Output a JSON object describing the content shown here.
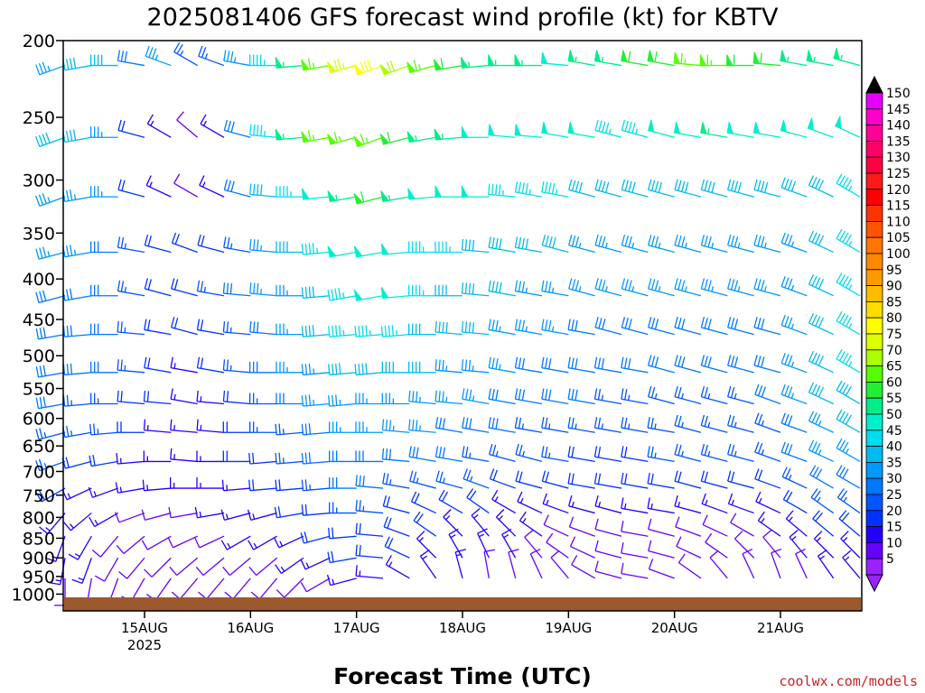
{
  "chart_data": {
    "type": "wind-barb-time-height",
    "title": "2025081406 GFS forecast wind profile (kt) for KBTV",
    "xlabel": "Forecast Time (UTC)",
    "ylabel": "",
    "y_axis": {
      "scale": "log-pressure",
      "range": [
        1050,
        200
      ],
      "ticks": [
        200,
        250,
        300,
        350,
        400,
        450,
        500,
        550,
        600,
        650,
        700,
        750,
        800,
        850,
        900,
        950,
        1000
      ]
    },
    "x_axis": {
      "range": [
        "2025-08-14 06Z",
        "2025-08-21 18Z"
      ],
      "ticks": [
        {
          "label": "15AUG",
          "sub": "2025",
          "time": "2025-08-15 00Z"
        },
        {
          "label": "16AUG",
          "sub": "",
          "time": "2025-08-16 00Z"
        },
        {
          "label": "17AUG",
          "sub": "",
          "time": "2025-08-17 00Z"
        },
        {
          "label": "18AUG",
          "sub": "",
          "time": "2025-08-18 00Z"
        },
        {
          "label": "19AUG",
          "sub": "",
          "time": "2025-08-19 00Z"
        },
        {
          "label": "20AUG",
          "sub": "",
          "time": "2025-08-20 00Z"
        },
        {
          "label": "21AUG",
          "sub": "",
          "time": "2025-08-21 00Z"
        }
      ]
    },
    "levels_hpa": [
      215,
      265,
      315,
      370,
      420,
      470,
      525,
      575,
      625,
      680,
      735,
      790,
      845,
      900,
      955
    ],
    "times_hours_from_start": [
      0,
      6,
      12,
      18,
      24,
      30,
      36,
      42,
      48,
      54,
      60,
      66,
      72,
      78,
      84,
      90,
      96,
      102,
      108,
      114,
      120,
      126,
      132,
      138,
      144,
      150,
      156,
      162,
      168,
      174,
      180
    ],
    "wind_speed_kt": [
      [
        35,
        40,
        40,
        30,
        35,
        25,
        25,
        35,
        45,
        55,
        65,
        75,
        80,
        70,
        65,
        60,
        55,
        55,
        55,
        50,
        55,
        55,
        60,
        60,
        65,
        65,
        60,
        60,
        55,
        55,
        55
      ],
      [
        40,
        40,
        35,
        20,
        15,
        10,
        15,
        30,
        45,
        55,
        65,
        65,
        65,
        60,
        55,
        55,
        50,
        50,
        50,
        50,
        50,
        45,
        45,
        50,
        50,
        55,
        50,
        50,
        50,
        50,
        50
      ],
      [
        35,
        35,
        35,
        20,
        15,
        10,
        15,
        30,
        40,
        45,
        50,
        55,
        60,
        55,
        50,
        50,
        50,
        45,
        45,
        45,
        40,
        40,
        40,
        40,
        40,
        40,
        40,
        40,
        40,
        40,
        45
      ],
      [
        35,
        35,
        30,
        25,
        20,
        20,
        20,
        25,
        35,
        40,
        45,
        50,
        50,
        50,
        45,
        45,
        40,
        40,
        40,
        40,
        35,
        35,
        35,
        35,
        35,
        35,
        35,
        35,
        35,
        40,
        45
      ],
      [
        30,
        30,
        30,
        25,
        20,
        20,
        25,
        30,
        35,
        35,
        40,
        45,
        50,
        50,
        45,
        40,
        40,
        40,
        35,
        35,
        35,
        35,
        35,
        35,
        35,
        35,
        35,
        35,
        35,
        40,
        45
      ],
      [
        30,
        30,
        30,
        25,
        20,
        20,
        20,
        25,
        30,
        35,
        40,
        45,
        45,
        45,
        40,
        40,
        40,
        35,
        35,
        35,
        30,
        30,
        30,
        30,
        30,
        30,
        30,
        30,
        35,
        40,
        45
      ],
      [
        30,
        30,
        30,
        25,
        20,
        15,
        20,
        25,
        30,
        35,
        35,
        40,
        40,
        40,
        40,
        35,
        35,
        35,
        30,
        30,
        30,
        30,
        30,
        30,
        30,
        30,
        30,
        30,
        35,
        40,
        45
      ],
      [
        30,
        25,
        25,
        20,
        20,
        15,
        15,
        20,
        25,
        30,
        35,
        35,
        35,
        35,
        35,
        35,
        35,
        30,
        30,
        30,
        30,
        25,
        25,
        25,
        25,
        25,
        25,
        30,
        35,
        40,
        40
      ],
      [
        25,
        25,
        25,
        20,
        15,
        15,
        15,
        20,
        25,
        25,
        30,
        35,
        35,
        35,
        35,
        30,
        30,
        30,
        25,
        25,
        25,
        25,
        25,
        25,
        25,
        25,
        25,
        25,
        30,
        35,
        40
      ],
      [
        25,
        20,
        20,
        15,
        15,
        15,
        15,
        20,
        20,
        25,
        30,
        30,
        30,
        30,
        30,
        30,
        25,
        25,
        25,
        25,
        20,
        20,
        20,
        25,
        25,
        25,
        25,
        25,
        30,
        35,
        35
      ],
      [
        20,
        15,
        15,
        15,
        15,
        15,
        15,
        15,
        20,
        20,
        25,
        30,
        30,
        25,
        25,
        25,
        25,
        20,
        20,
        20,
        20,
        20,
        20,
        20,
        20,
        20,
        20,
        20,
        25,
        30,
        30
      ],
      [
        15,
        15,
        15,
        10,
        10,
        10,
        15,
        15,
        15,
        20,
        20,
        25,
        25,
        20,
        20,
        20,
        20,
        15,
        15,
        15,
        15,
        15,
        15,
        15,
        15,
        15,
        15,
        15,
        20,
        25,
        25
      ],
      [
        15,
        15,
        10,
        10,
        10,
        10,
        10,
        15,
        15,
        15,
        20,
        20,
        20,
        20,
        20,
        15,
        15,
        15,
        15,
        10,
        10,
        10,
        10,
        10,
        10,
        10,
        10,
        15,
        15,
        20,
        20
      ],
      [
        15,
        15,
        10,
        10,
        10,
        10,
        10,
        10,
        10,
        15,
        15,
        20,
        20,
        20,
        15,
        15,
        15,
        15,
        10,
        10,
        10,
        10,
        10,
        10,
        10,
        10,
        10,
        10,
        15,
        15,
        15
      ],
      [
        10,
        10,
        10,
        10,
        10,
        10,
        10,
        10,
        10,
        10,
        10,
        15,
        15,
        15,
        15,
        15,
        10,
        10,
        10,
        10,
        10,
        10,
        10,
        10,
        10,
        10,
        10,
        10,
        10,
        15,
        15
      ]
    ],
    "wind_dir_deg": [
      [
        250,
        260,
        270,
        280,
        290,
        300,
        290,
        280,
        270,
        265,
        260,
        255,
        250,
        250,
        255,
        260,
        265,
        270,
        270,
        275,
        280,
        280,
        280,
        280,
        275,
        270,
        270,
        275,
        280,
        280,
        285
      ],
      [
        250,
        260,
        270,
        285,
        300,
        310,
        300,
        285,
        275,
        265,
        260,
        255,
        250,
        255,
        260,
        265,
        270,
        275,
        275,
        280,
        280,
        285,
        285,
        285,
        280,
        280,
        280,
        280,
        285,
        290,
        295
      ],
      [
        250,
        260,
        270,
        285,
        295,
        300,
        295,
        285,
        275,
        270,
        265,
        260,
        255,
        260,
        265,
        270,
        270,
        275,
        280,
        280,
        285,
        285,
        285,
        285,
        285,
        285,
        285,
        285,
        290,
        295,
        300
      ],
      [
        255,
        260,
        270,
        280,
        285,
        290,
        285,
        280,
        275,
        270,
        265,
        260,
        260,
        265,
        270,
        270,
        275,
        280,
        280,
        285,
        285,
        285,
        285,
        285,
        285,
        285,
        285,
        285,
        290,
        295,
        300
      ],
      [
        255,
        260,
        270,
        280,
        285,
        285,
        280,
        275,
        275,
        270,
        265,
        260,
        260,
        265,
        270,
        270,
        275,
        280,
        280,
        280,
        285,
        285,
        285,
        285,
        285,
        285,
        285,
        285,
        290,
        295,
        300
      ],
      [
        260,
        265,
        270,
        275,
        280,
        285,
        280,
        275,
        275,
        270,
        265,
        265,
        265,
        265,
        270,
        275,
        275,
        280,
        280,
        280,
        280,
        285,
        285,
        285,
        285,
        285,
        285,
        285,
        290,
        295,
        300
      ],
      [
        260,
        265,
        270,
        275,
        280,
        280,
        280,
        275,
        270,
        270,
        265,
        265,
        265,
        270,
        270,
        275,
        275,
        280,
        280,
        280,
        280,
        280,
        280,
        285,
        285,
        285,
        285,
        285,
        290,
        295,
        300
      ],
      [
        260,
        265,
        270,
        275,
        275,
        280,
        275,
        275,
        270,
        270,
        265,
        265,
        270,
        270,
        275,
        275,
        280,
        280,
        280,
        280,
        280,
        280,
        280,
        285,
        285,
        285,
        285,
        290,
        290,
        295,
        300
      ],
      [
        255,
        260,
        265,
        270,
        275,
        275,
        275,
        270,
        270,
        265,
        265,
        270,
        270,
        275,
        275,
        280,
        280,
        280,
        280,
        280,
        280,
        280,
        280,
        280,
        285,
        285,
        285,
        290,
        290,
        295,
        300
      ],
      [
        250,
        255,
        260,
        265,
        270,
        275,
        270,
        270,
        265,
        265,
        265,
        270,
        270,
        275,
        280,
        280,
        280,
        285,
        285,
        280,
        280,
        280,
        280,
        280,
        285,
        285,
        285,
        290,
        290,
        295,
        300
      ],
      [
        240,
        245,
        250,
        260,
        265,
        270,
        270,
        265,
        265,
        265,
        265,
        270,
        275,
        280,
        285,
        285,
        290,
        290,
        285,
        285,
        280,
        280,
        280,
        280,
        285,
        285,
        285,
        290,
        295,
        300,
        300
      ],
      [
        220,
        230,
        240,
        250,
        255,
        260,
        260,
        255,
        255,
        260,
        265,
        270,
        275,
        285,
        295,
        300,
        305,
        300,
        295,
        290,
        285,
        285,
        280,
        280,
        285,
        290,
        290,
        295,
        300,
        305,
        305
      ],
      [
        200,
        210,
        220,
        230,
        240,
        245,
        245,
        240,
        240,
        245,
        255,
        265,
        275,
        290,
        305,
        315,
        320,
        315,
        305,
        295,
        290,
        285,
        280,
        285,
        290,
        295,
        300,
        305,
        310,
        310,
        310
      ],
      [
        190,
        200,
        210,
        220,
        225,
        230,
        230,
        230,
        230,
        235,
        245,
        260,
        275,
        295,
        315,
        330,
        335,
        330,
        320,
        305,
        295,
        285,
        280,
        285,
        295,
        305,
        315,
        320,
        320,
        315,
        315
      ],
      [
        180,
        190,
        200,
        210,
        215,
        220,
        220,
        220,
        220,
        225,
        240,
        255,
        275,
        300,
        325,
        345,
        350,
        345,
        335,
        320,
        300,
        285,
        280,
        290,
        305,
        320,
        335,
        340,
        335,
        325,
        320
      ]
    ],
    "colorbar": {
      "labels": [
        "150",
        "145",
        "140",
        "135",
        "130",
        "125",
        "120",
        "115",
        "110",
        "105",
        "100",
        "95",
        "90",
        "85",
        "80",
        "75",
        "70",
        "65",
        "60",
        "55",
        "50",
        "45",
        "40",
        "35",
        "30",
        "25",
        "20",
        "15",
        "10",
        "5"
      ],
      "colors": [
        "#e600ff",
        "#ff00cc",
        "#ff0099",
        "#ff0066",
        "#ff0040",
        "#ff1a1a",
        "#ff0000",
        "#ff3300",
        "#ff5500",
        "#ff7700",
        "#ff8800",
        "#ff9900",
        "#ffbb00",
        "#ffdd00",
        "#ffff00",
        "#ddff00",
        "#aaff00",
        "#55ff00",
        "#22ee33",
        "#00ee88",
        "#00eecc",
        "#00ddee",
        "#00bbee",
        "#0099ff",
        "#0077ff",
        "#0055ff",
        "#0033ff",
        "#2200ff",
        "#6600ff",
        "#9922ff"
      ],
      "top_arrow_color": "#000000",
      "bottom_arrow_color": "#9922ff"
    },
    "terrain_color": "#9c5a2c",
    "credit": "coolwx.com/models"
  }
}
